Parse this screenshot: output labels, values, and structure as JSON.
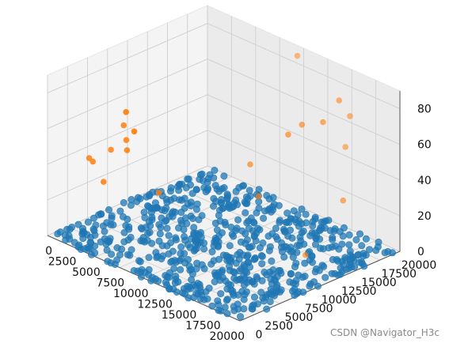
{
  "chart_data": {
    "type": "scatter",
    "projection": "3d",
    "grid": true,
    "title": "",
    "xlabel": "",
    "ylabel": "",
    "zlabel": "",
    "xlim": [
      0,
      20000
    ],
    "ylim": [
      0,
      20000
    ],
    "zlim": [
      0,
      90
    ],
    "x_ticks": [
      0,
      2500,
      5000,
      7500,
      10000,
      12500,
      15000,
      17500,
      20000
    ],
    "y_ticks": [
      0,
      2500,
      5000,
      7500,
      10000,
      12500,
      15000,
      17500,
      20000
    ],
    "z_ticks": [
      0,
      20,
      40,
      60,
      80
    ],
    "colors": {
      "series_1": "#1f77b4",
      "series_2": "#ff7f0e"
    },
    "series": [
      {
        "note_points": "approx. 700 points, x and y spread uniformly over 0–20000, z ≈ 0",
        "count": 700,
        "z_value": 0
      },
      {
        "points": [
          [
            1000,
            4000,
            38
          ],
          [
            1800,
            3500,
            39
          ],
          [
            2600,
            4800,
            45
          ],
          [
            3500,
            2800,
            33
          ],
          [
            4600,
            4000,
            65
          ],
          [
            5200,
            3600,
            59
          ],
          [
            5600,
            3200,
            55
          ],
          [
            8000,
            200,
            88
          ],
          [
            8600,
            500,
            78
          ],
          [
            7000,
            5500,
            30
          ],
          [
            11500,
            11500,
            45
          ],
          [
            13200,
            10500,
            33
          ],
          [
            16000,
            13000,
            2
          ],
          [
            15200,
            11800,
            70
          ],
          [
            15800,
            12800,
            75
          ],
          [
            18000,
            14800,
            90
          ],
          [
            17000,
            14000,
            77
          ],
          [
            18300,
            15800,
            80
          ],
          [
            17500,
            16200,
            60
          ],
          [
            19500,
            13500,
            40
          ],
          [
            11000,
            18000,
            92
          ]
        ]
      }
    ]
  },
  "watermark": "CSDN @Navigator_H3c"
}
